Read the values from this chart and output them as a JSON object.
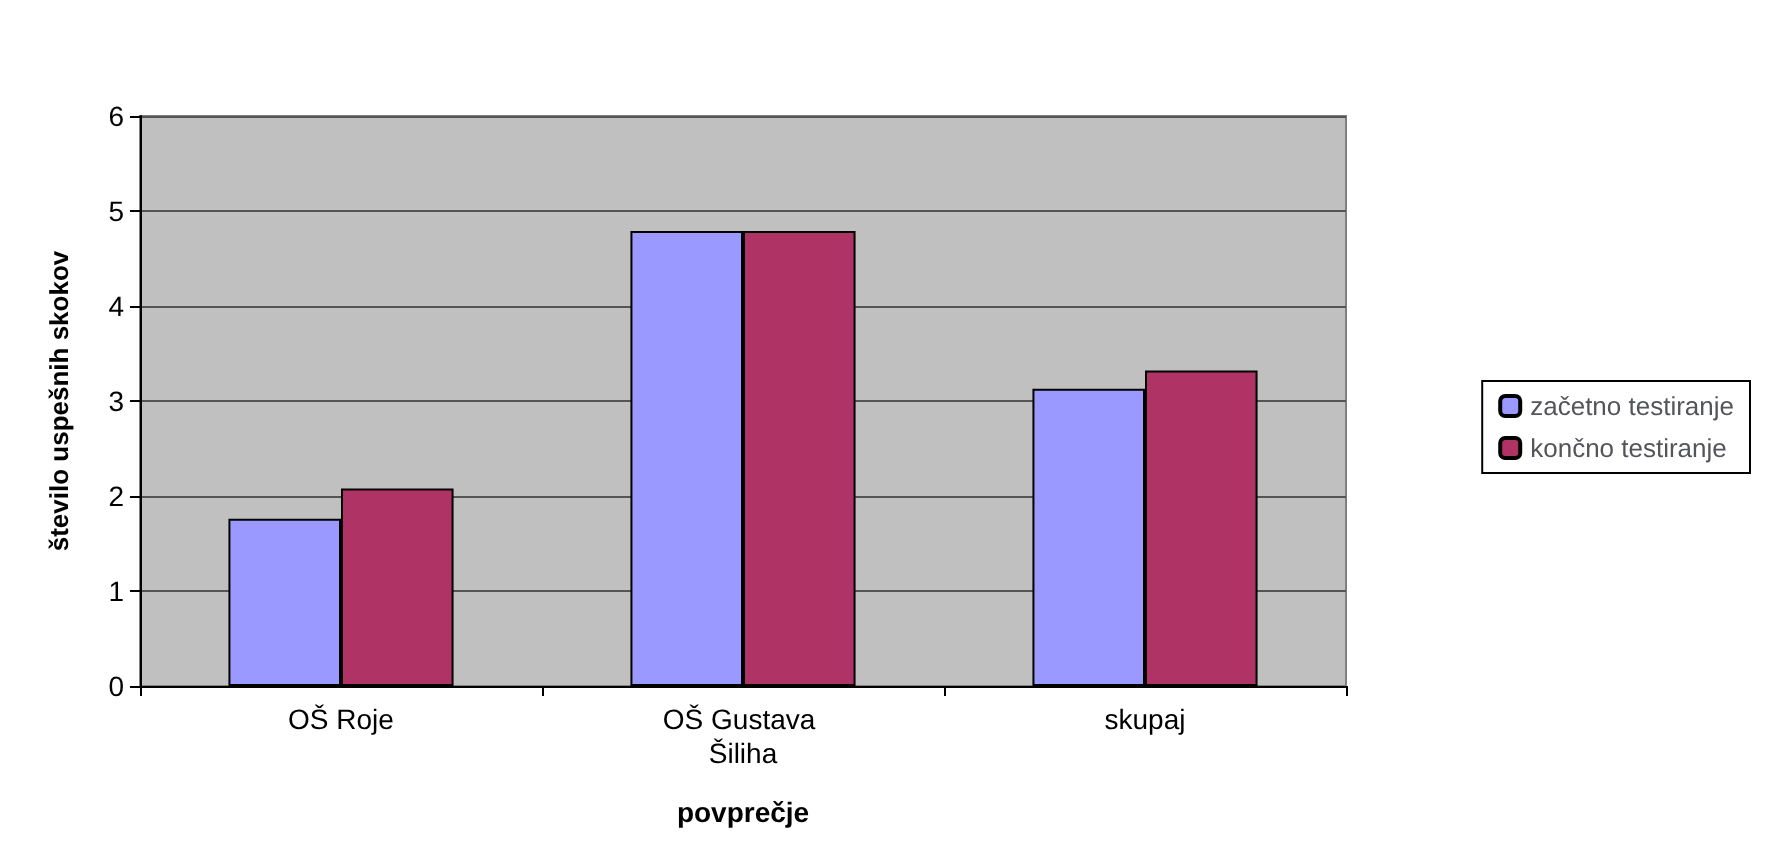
{
  "chart_data": {
    "type": "bar",
    "xlabel": "povprečje",
    "ylabel": "število uspešnih skokov",
    "categories": [
      "OŠ Roje",
      "OŠ Gustava Šiliha",
      "skupaj"
    ],
    "series": [
      {
        "name": "začetno testiranje",
        "color": "#9999ff",
        "values": [
          1.76,
          4.79,
          3.13
        ]
      },
      {
        "name": "končno testiranje",
        "color": "#b03366",
        "values": [
          2.08,
          4.79,
          3.32
        ]
      }
    ],
    "ylim": [
      0,
      6
    ],
    "yticks": [
      0,
      1,
      2,
      3,
      4,
      5,
      6
    ],
    "grid": "y",
    "legend": "right"
  }
}
